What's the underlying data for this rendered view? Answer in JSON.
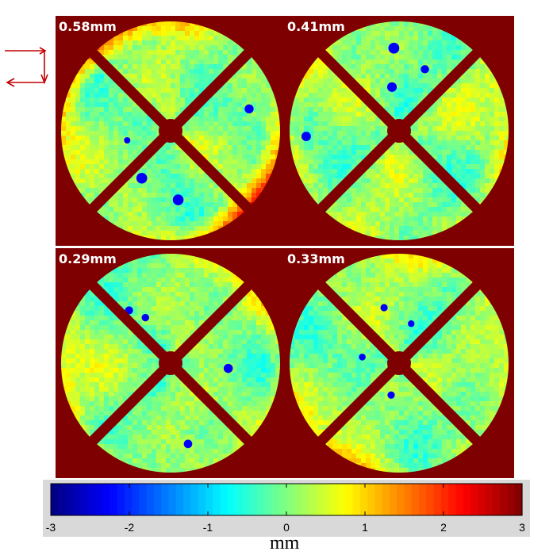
{
  "chart_data": {
    "type": "heatmap",
    "title": "",
    "panels": [
      {
        "label": "0.58mm",
        "value_mm": 0.58,
        "position": "top-left"
      },
      {
        "label": "0.41mm",
        "value_mm": 0.41,
        "position": "top-right"
      },
      {
        "label": "0.29mm",
        "value_mm": 0.29,
        "position": "bottom-left"
      },
      {
        "label": "0.33mm",
        "value_mm": 0.33,
        "position": "bottom-right"
      }
    ],
    "colorbar": {
      "colormap": "jet",
      "min": -3,
      "max": 3,
      "ticks": [
        "-3",
        "-2",
        "-1",
        "0",
        "1",
        "2",
        "3"
      ],
      "unit": "mm"
    }
  },
  "colors": {
    "background": "#7f0000",
    "surface": "#8cf0b4",
    "arrow": "#c00000"
  },
  "icons": {
    "arrow": "rotation-arrow-icon"
  }
}
